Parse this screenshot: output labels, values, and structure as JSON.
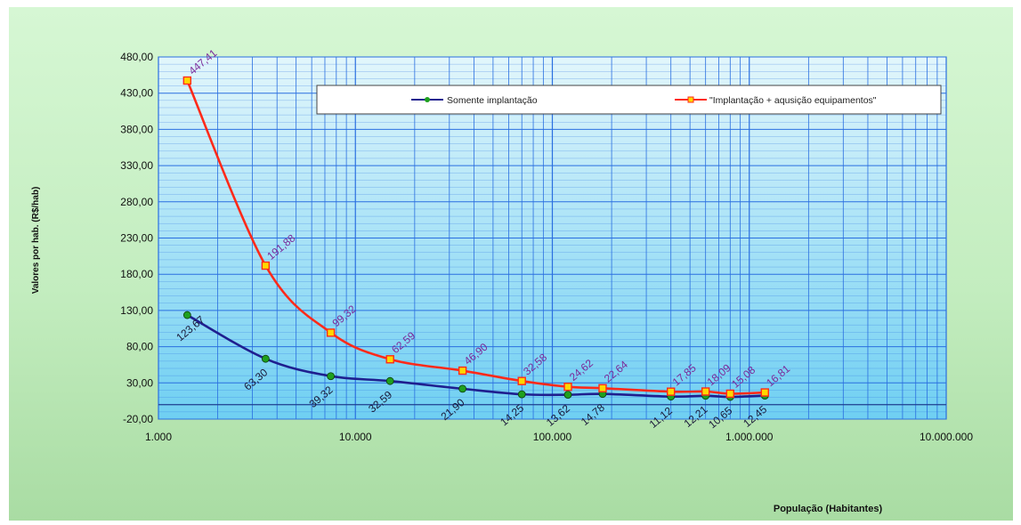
{
  "chart_data": {
    "type": "line",
    "title": "",
    "xlabel": "População (Habitantes)",
    "ylabel": "Valores por hab. (R$/hab)",
    "x_scale": "log",
    "xlim": [
      1000,
      10000000
    ],
    "ylim": [
      -20,
      480
    ],
    "x_ticks": [
      {
        "value": 1000,
        "label": "1.000"
      },
      {
        "value": 10000,
        "label": "10.000"
      },
      {
        "value": 100000,
        "label": "100.000"
      },
      {
        "value": 1000000,
        "label": "1.000.000"
      },
      {
        "value": 10000000,
        "label": "10.000.000"
      }
    ],
    "y_ticks": [
      {
        "value": -20,
        "label": "-20,00"
      },
      {
        "value": 30,
        "label": "30,00"
      },
      {
        "value": 80,
        "label": "80,00"
      },
      {
        "value": 130,
        "label": "130,00"
      },
      {
        "value": 180,
        "label": "180,00"
      },
      {
        "value": 230,
        "label": "230,00"
      },
      {
        "value": 280,
        "label": "280,00"
      },
      {
        "value": 330,
        "label": "330,00"
      },
      {
        "value": 380,
        "label": "380,00"
      },
      {
        "value": 430,
        "label": "430,00"
      },
      {
        "value": 480,
        "label": "480,00"
      }
    ],
    "grid": true,
    "legend_position": "top-right",
    "series": [
      {
        "name": "Somente implantação",
        "color": "#1f1f8f",
        "marker_color": "#1fa01f",
        "label_color": "#1a1a3a",
        "x": [
          1400,
          3500,
          7500,
          15000,
          35000,
          70000,
          120000,
          180000,
          400000,
          600000,
          800000,
          1200000
        ],
        "y": [
          123.67,
          63.3,
          39.32,
          32.59,
          21.9,
          14.25,
          13.62,
          14.78,
          11.12,
          12.21,
          10.65,
          12.45
        ],
        "labels": [
          "123,67",
          "63,30",
          "39,32",
          "32,59",
          "21,90",
          "14,25",
          "13,62",
          "14,78",
          "11,12",
          "12,21",
          "10,65",
          "12,45"
        ]
      },
      {
        "name": "\"Implantação + aqusição equipamentos\"",
        "color": "#ff2a1a",
        "marker_color": "#ffd700",
        "label_color": "#7b2a9a",
        "x": [
          1400,
          3500,
          7500,
          15000,
          35000,
          70000,
          120000,
          180000,
          400000,
          600000,
          800000,
          1200000
        ],
        "y": [
          447.41,
          191.88,
          99.32,
          62.59,
          46.9,
          32.58,
          24.62,
          22.64,
          17.85,
          18.09,
          15.08,
          16.81
        ],
        "labels": [
          "447,41",
          "191,88",
          "99,32",
          "62,59",
          "46,90",
          "32,58",
          "24,62",
          "22,64",
          "17,85",
          "18,09",
          "15,08",
          "16,81"
        ]
      }
    ]
  },
  "colors": {
    "plot_top": "#e2f6fb",
    "plot_bottom": "#6fcff2",
    "grid": "#2a6fe0"
  }
}
